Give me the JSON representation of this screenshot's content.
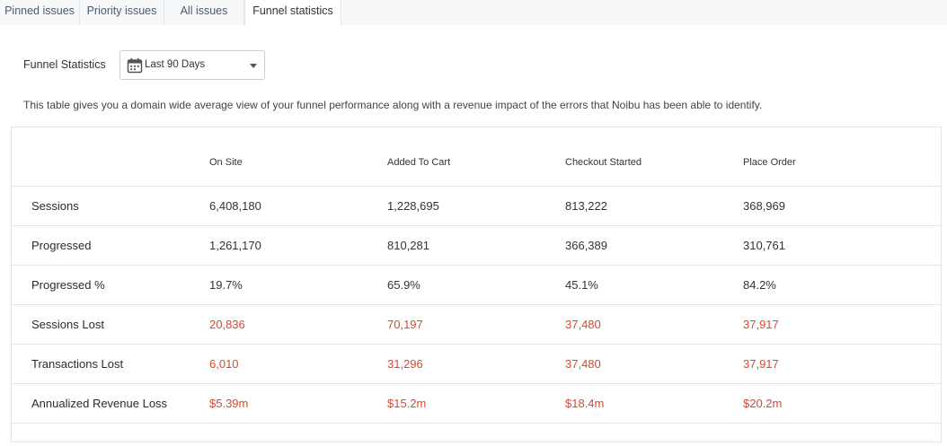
{
  "tabs": [
    {
      "label": "Pinned issues"
    },
    {
      "label": "Priority issues"
    },
    {
      "label": "All issues"
    },
    {
      "label": "Funnel statistics",
      "active": true
    }
  ],
  "filter": {
    "label": "Funnel Statistics",
    "selected": "Last 90 Days",
    "icon": "calendar-icon"
  },
  "description": "This table gives you a domain wide average view of your funnel performance along with a revenue impact of the errors that Noibu has been able to identify.",
  "colors": {
    "loss": "#d44a2f"
  },
  "table": {
    "columns": [
      "On Site",
      "Added To Cart",
      "Checkout Started",
      "Place Order"
    ],
    "rows": [
      {
        "label": "Sessions",
        "values": [
          "6,408,180",
          "1,228,695",
          "813,222",
          "368,969"
        ],
        "highlight": false
      },
      {
        "label": "Progressed",
        "values": [
          "1,261,170",
          "810,281",
          "366,389",
          "310,761"
        ],
        "highlight": false
      },
      {
        "label": "Progressed %",
        "values": [
          "19.7%",
          "65.9%",
          "45.1%",
          "84.2%"
        ],
        "highlight": false
      },
      {
        "label": "Sessions Lost",
        "values": [
          "20,836",
          "70,197",
          "37,480",
          "37,917"
        ],
        "highlight": true
      },
      {
        "label": "Transactions Lost",
        "values": [
          "6,010",
          "31,296",
          "37,480",
          "37,917"
        ],
        "highlight": true
      },
      {
        "label": "Annualized Revenue Loss",
        "values": [
          "$5.39m",
          "$15.2m",
          "$18.4m",
          "$20.2m"
        ],
        "highlight": true
      }
    ]
  }
}
